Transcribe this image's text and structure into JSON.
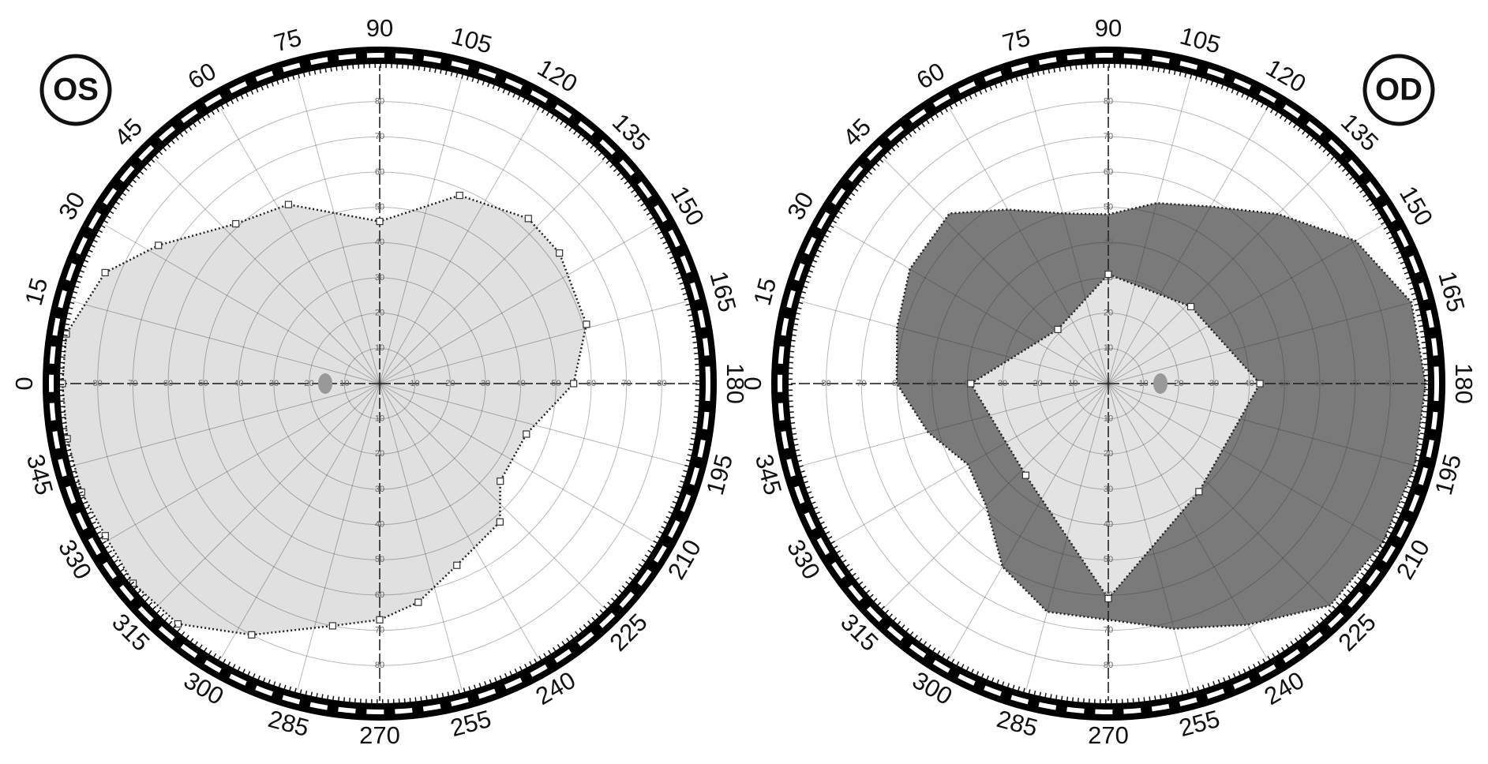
{
  "chart_data": [
    {
      "type": "polar",
      "label": "OS",
      "angle_ticks": [
        0,
        15,
        30,
        45,
        60,
        75,
        90,
        105,
        120,
        135,
        150,
        165,
        180,
        195,
        210,
        225,
        240,
        255,
        270,
        285,
        300,
        315,
        330,
        345
      ],
      "rticks": [
        10,
        20,
        30,
        40,
        50,
        60,
        70,
        80
      ],
      "rlim": [
        0,
        90
      ],
      "series": [
        {
          "color": "#e0e0e0",
          "markers": true,
          "theta": [
            0,
            9,
            22,
            32,
            48,
            63,
            90,
            113,
            132,
            144,
            164,
            180,
            199,
            219,
            229,
            247,
            260,
            270,
            281,
            297,
            310,
            321,
            331,
            340,
            350
          ],
          "r": [
            90,
            90,
            84,
            74,
            61,
            57,
            46,
            58,
            63,
            63,
            61,
            55,
            44,
            44,
            52,
            56,
            63,
            67,
            70,
            80,
            89,
            90,
            89,
            90,
            90
          ]
        }
      ]
    },
    {
      "type": "polar",
      "label": "OD",
      "angle_ticks": [
        0,
        15,
        30,
        45,
        60,
        75,
        90,
        105,
        120,
        135,
        150,
        165,
        180,
        195,
        210,
        225,
        240,
        255,
        270,
        285,
        300,
        315,
        330,
        345
      ],
      "rticks": [
        10,
        20,
        30,
        40,
        50,
        60,
        70,
        80
      ],
      "rlim": [
        0,
        90
      ],
      "series": [
        {
          "color": "#7a7a7a",
          "markers": false,
          "theta": [
            0,
            15,
            30,
            47,
            60,
            75,
            90,
            105,
            120,
            135,
            150,
            165,
            180,
            195,
            210,
            225,
            240,
            255,
            270,
            285,
            300,
            315,
            330,
            345
          ],
          "r": [
            60,
            62,
            65,
            66,
            57,
            50,
            48,
            53,
            58,
            68,
            81,
            89,
            90,
            90,
            90,
            89,
            79,
            72,
            67,
            67,
            60,
            49,
            46,
            53
          ]
        },
        {
          "color": "#e3e3e3",
          "markers": true,
          "theta": [
            0,
            47,
            90,
            137,
            180,
            230,
            270,
            312
          ],
          "r": [
            39,
            21,
            31,
            32,
            43,
            40,
            61,
            35
          ]
        }
      ]
    }
  ]
}
